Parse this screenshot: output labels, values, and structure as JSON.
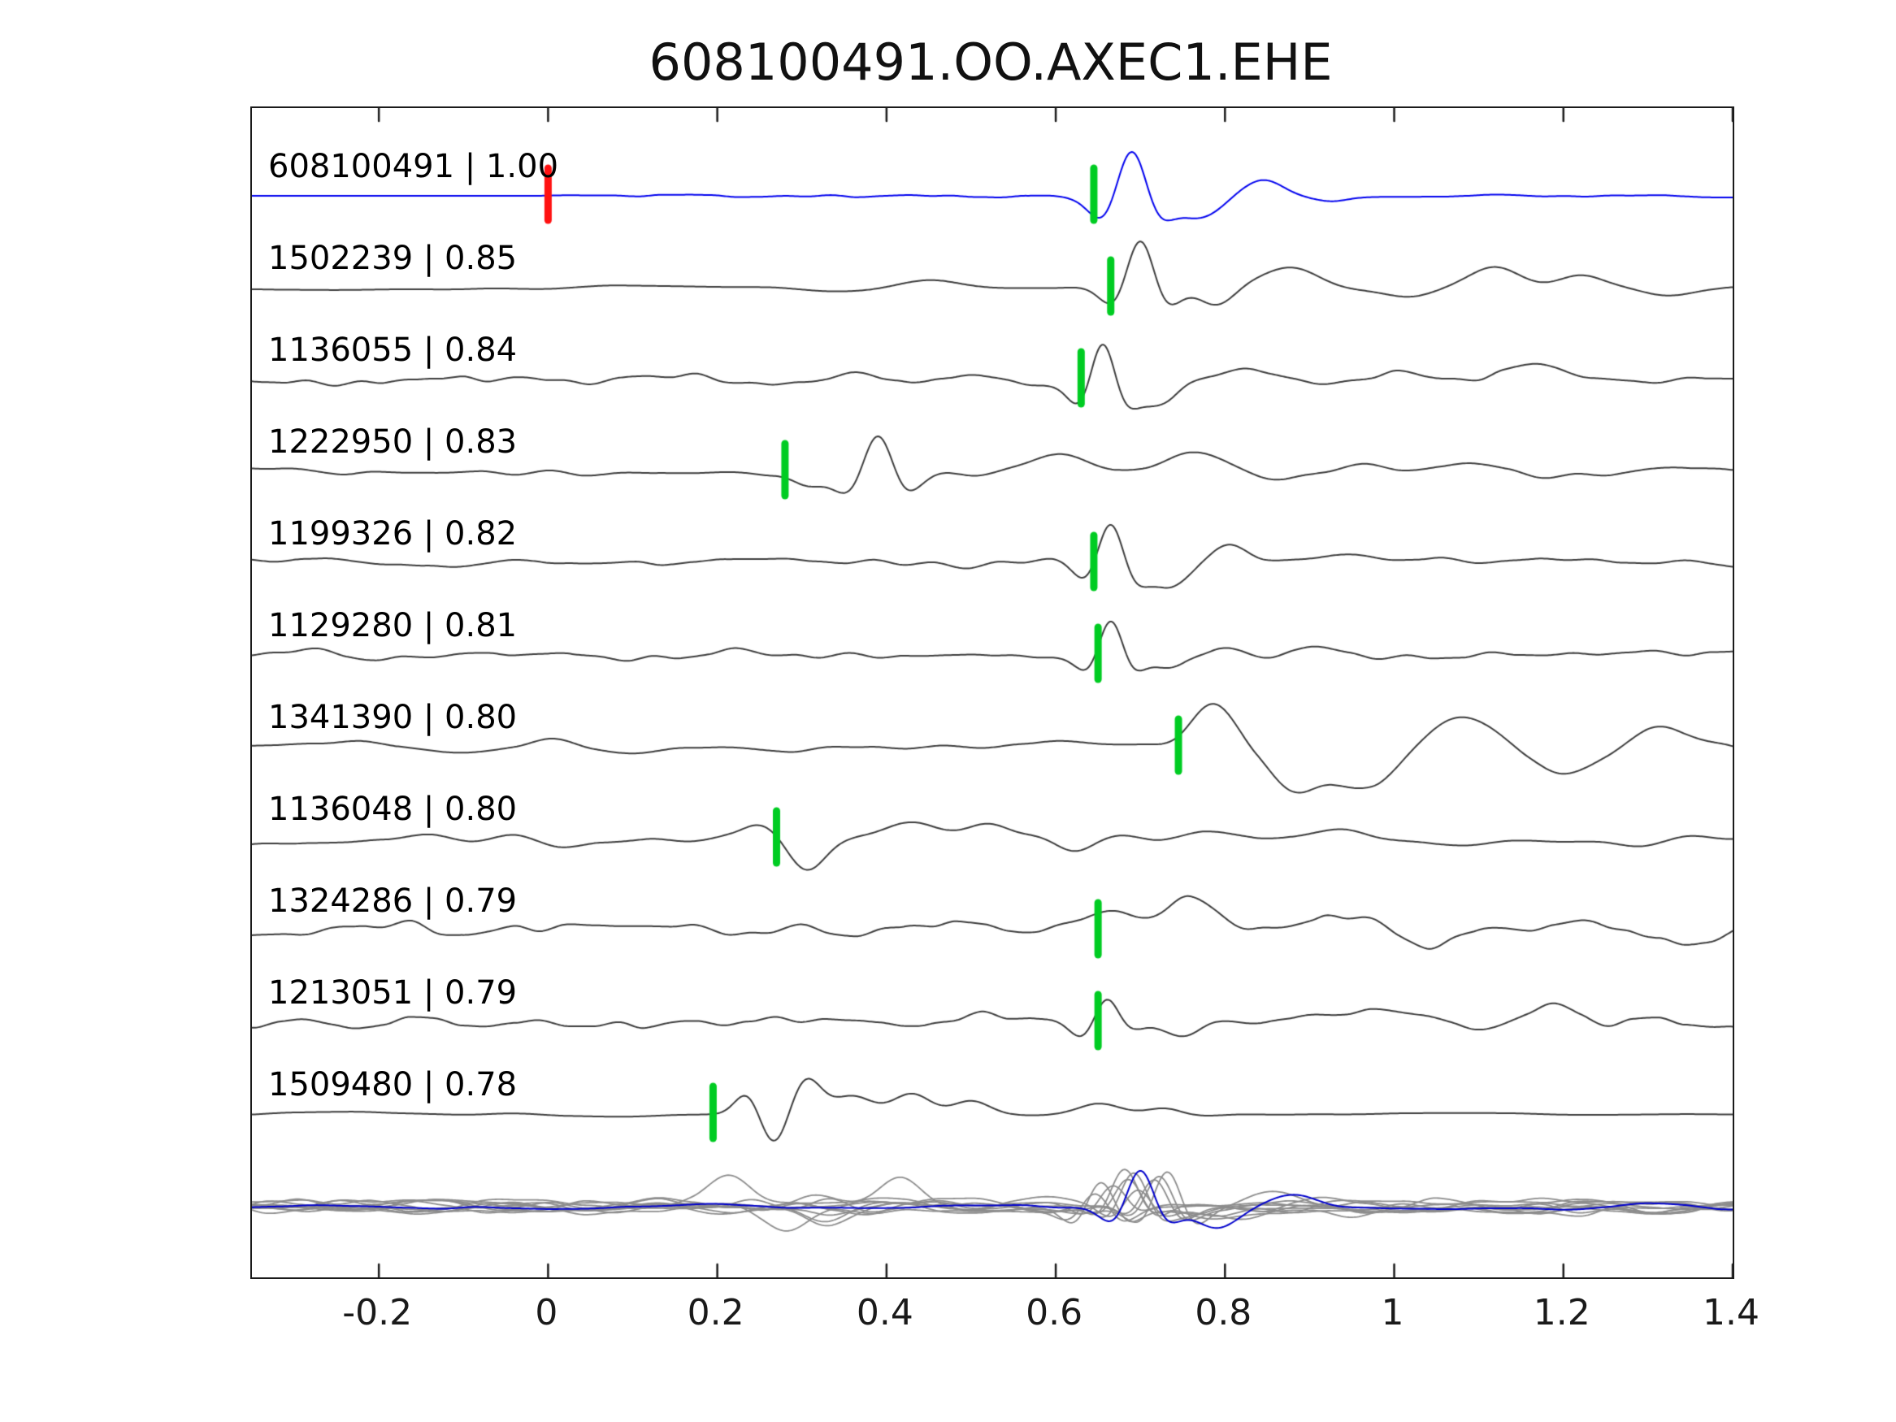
{
  "chart_data": {
    "type": "line",
    "title": "608100491.OO.AXEC1.EHE",
    "xlim": [
      -0.35,
      1.4
    ],
    "xticks": [
      -0.2,
      0,
      0.2,
      0.4,
      0.6,
      0.8,
      1,
      1.2,
      1.4
    ],
    "xtick_labels": [
      "-0.2",
      "0",
      "0.2",
      "0.4",
      "0.6",
      "0.8",
      "1",
      "1.2",
      "1.4"
    ],
    "colors": {
      "template_trace": "#0000ee",
      "member_trace": "#3c3c3c",
      "overlay_trace": "#8c8c8c",
      "overlay_template": "#0000cc",
      "pick_green": "#00cc22",
      "pick_red": "#ff1111",
      "axis": "#1a1a1a"
    },
    "traces": [
      {
        "id": "608100491",
        "corr": "1.00",
        "label": "608100491 | 1.00",
        "color": "#0000ee",
        "picks": [
          {
            "x": 0.0,
            "color": "#ff1111"
          },
          {
            "x": 0.645,
            "color": "#00cc22"
          }
        ],
        "synth": {
          "seed": 11,
          "noiseAmp": 5,
          "freq": 16,
          "env": [
            [
              -0.35,
              0.04
            ],
            [
              -0.01,
              0.04
            ],
            [
              0.04,
              0.9
            ],
            [
              0.55,
              0.9
            ],
            [
              0.95,
              0.5
            ],
            [
              1.4,
              0.45
            ]
          ],
          "wavelets": [
            [
              0.69,
              -55,
              0.032,
              "r"
            ],
            [
              0.77,
              28,
              0.035,
              "g"
            ],
            [
              0.845,
              -18,
              0.032,
              "g"
            ],
            [
              0.92,
              6,
              0.03,
              "g"
            ]
          ]
        }
      },
      {
        "id": "1502239",
        "corr": "0.85",
        "label": "1502239 | 0.85",
        "picks": [
          {
            "x": 0.665,
            "color": "#00cc22"
          }
        ],
        "synth": {
          "seed": 22,
          "noiseAmp": 9,
          "freq": 5.5,
          "env": [],
          "wavelets": [
            [
              0.45,
              -12,
              0.05,
              "g"
            ],
            [
              0.7,
              -52,
              0.03,
              "r"
            ],
            [
              0.79,
              26,
              0.03,
              "g"
            ],
            [
              0.88,
              -24,
              0.045,
              "g"
            ],
            [
              1.02,
              10,
              0.04,
              "g"
            ],
            [
              1.12,
              -22,
              0.04,
              "g"
            ],
            [
              1.22,
              -14,
              0.035,
              "g"
            ],
            [
              1.32,
              8,
              0.04,
              "g"
            ]
          ]
        }
      },
      {
        "id": "1136055",
        "corr": "0.84",
        "label": "1136055 | 0.84",
        "picks": [
          {
            "x": 0.63,
            "color": "#00cc22"
          }
        ],
        "synth": {
          "seed": 33,
          "noiseAmp": 12,
          "freq": 15,
          "env": [],
          "wavelets": [
            [
              0.655,
              -48,
              0.026,
              "r"
            ],
            [
              0.72,
              26,
              0.03,
              "g"
            ],
            [
              0.83,
              -18,
              0.05,
              "g"
            ],
            [
              1.0,
              -14,
              0.05,
              "g"
            ],
            [
              1.17,
              -12,
              0.045,
              "g"
            ]
          ]
        }
      },
      {
        "id": "1222950",
        "corr": "0.83",
        "label": "1222950 | 0.83",
        "picks": [
          {
            "x": 0.28,
            "color": "#00cc22"
          }
        ],
        "synth": {
          "seed": 44,
          "noiseAmp": 10,
          "freq": 11,
          "env": [],
          "wavelets": [
            [
              0.305,
              14,
              0.025,
              "g"
            ],
            [
              0.39,
              -45,
              0.032,
              "r"
            ],
            [
              0.6,
              -16,
              0.035,
              "g"
            ],
            [
              0.76,
              -18,
              0.04,
              "g"
            ],
            [
              0.87,
              12,
              0.04,
              "g"
            ],
            [
              1.1,
              -10,
              0.05,
              "g"
            ]
          ]
        }
      },
      {
        "id": "1199326",
        "corr": "0.82",
        "label": "1199326 | 0.82",
        "picks": [
          {
            "x": 0.645,
            "color": "#00cc22"
          }
        ],
        "synth": {
          "seed": 55,
          "noiseAmp": 9,
          "freq": 13,
          "env": [],
          "wavelets": [
            [
              0.665,
              -46,
              0.028,
              "r"
            ],
            [
              0.735,
              26,
              0.032,
              "g"
            ],
            [
              0.8,
              -20,
              0.035,
              "g"
            ],
            [
              0.95,
              -10,
              0.04,
              "g"
            ]
          ]
        }
      },
      {
        "id": "1129280",
        "corr": "0.81",
        "label": "1129280 | 0.81",
        "picks": [
          {
            "x": 0.65,
            "color": "#00cc22"
          }
        ],
        "synth": {
          "seed": 66,
          "noiseAmp": 10,
          "freq": 14,
          "env": [],
          "wavelets": [
            [
              0.665,
              -40,
              0.026,
              "r"
            ],
            [
              0.73,
              22,
              0.03,
              "g"
            ],
            [
              0.8,
              -16,
              0.035,
              "g"
            ],
            [
              0.9,
              -12,
              0.04,
              "g"
            ]
          ]
        }
      },
      {
        "id": "1341390",
        "corr": "0.80",
        "label": "1341390 | 0.80",
        "picks": [
          {
            "x": 0.745,
            "color": "#00cc22"
          }
        ],
        "synth": {
          "seed": 77,
          "noiseAmp": 11,
          "freq": 10,
          "env": [
            [
              -0.35,
              1
            ],
            [
              0.7,
              1
            ],
            [
              0.82,
              2.4
            ],
            [
              1.4,
              2.2
            ]
          ],
          "wavelets": [
            [
              0.78,
              -35,
              0.035,
              "g"
            ],
            [
              0.88,
              35,
              0.04,
              "g"
            ],
            [
              0.97,
              40,
              0.045,
              "g"
            ],
            [
              1.07,
              -28,
              0.04,
              "g"
            ],
            [
              1.2,
              32,
              0.05,
              "g"
            ],
            [
              1.33,
              -22,
              0.04,
              "g"
            ]
          ]
        }
      },
      {
        "id": "1136048",
        "corr": "0.80",
        "label": "1136048 | 0.80",
        "picks": [
          {
            "x": 0.27,
            "color": "#00cc22"
          }
        ],
        "synth": {
          "seed": 88,
          "noiseAmp": 14,
          "freq": 9,
          "env": [],
          "wavelets": [
            [
              0.25,
              -16,
              0.03,
              "g"
            ],
            [
              0.305,
              36,
              0.03,
              "g"
            ],
            [
              0.43,
              -22,
              0.04,
              "g"
            ],
            [
              0.52,
              -28,
              0.035,
              "g"
            ],
            [
              0.62,
              12,
              0.03,
              "g"
            ],
            [
              0.78,
              -14,
              0.04,
              "g"
            ]
          ]
        }
      },
      {
        "id": "1324286",
        "corr": "0.79",
        "label": "1324286 | 0.79",
        "picks": [
          {
            "x": 0.65,
            "color": "#00cc22"
          }
        ],
        "synth": {
          "seed": 99,
          "noiseAmp": 15,
          "freq": 15,
          "env": [
            [
              -0.35,
              1
            ],
            [
              0.6,
              1
            ],
            [
              0.72,
              1.5
            ],
            [
              1.4,
              1.4
            ]
          ],
          "wavelets": [
            [
              0.67,
              -20,
              0.03,
              "g"
            ],
            [
              0.75,
              -30,
              0.04,
              "g"
            ],
            [
              0.92,
              -22,
              0.04,
              "g"
            ],
            [
              1.05,
              25,
              0.04,
              "g"
            ]
          ]
        }
      },
      {
        "id": "1213051",
        "corr": "0.79",
        "label": "1213051 | 0.79",
        "picks": [
          {
            "x": 0.65,
            "color": "#00cc22"
          }
        ],
        "synth": {
          "seed": 110,
          "noiseAmp": 16,
          "freq": 15,
          "env": [],
          "wavelets": [
            [
              0.66,
              -28,
              0.028,
              "r"
            ],
            [
              0.75,
              26,
              0.035,
              "g"
            ],
            [
              0.97,
              -18,
              0.04,
              "g"
            ],
            [
              1.2,
              -16,
              0.045,
              "g"
            ]
          ]
        }
      },
      {
        "id": "1509480",
        "corr": "0.78",
        "label": "1509480 | 0.78",
        "picks": [
          {
            "x": 0.195,
            "color": "#00cc22"
          }
        ],
        "synth": {
          "seed": 121,
          "noiseAmp": 7,
          "freq": 7,
          "env": [
            [
              -0.35,
              1
            ],
            [
              0.75,
              1
            ],
            [
              0.9,
              0.4
            ],
            [
              1.4,
              0.35
            ]
          ],
          "wavelets": [
            [
              0.235,
              -26,
              0.02,
              "g"
            ],
            [
              0.268,
              40,
              0.022,
              "g"
            ],
            [
              0.305,
              -42,
              0.025,
              "g"
            ],
            [
              0.36,
              -18,
              0.03,
              "g"
            ],
            [
              0.43,
              -22,
              0.03,
              "g"
            ],
            [
              0.5,
              -16,
              0.03,
              "g"
            ],
            [
              0.65,
              -14,
              0.035,
              "g"
            ],
            [
              0.73,
              -10,
              0.03,
              "g"
            ]
          ]
        }
      }
    ],
    "overlay": {
      "count": 10,
      "noiseAmp": 13,
      "freq": 11,
      "color": "#8c8c8c",
      "blue": {
        "seed": 500,
        "noiseAmp": 5,
        "freq": 10,
        "env": [],
        "wavelets": [
          [
            0.7,
            -42,
            0.03,
            "r"
          ],
          [
            0.79,
            26,
            0.035,
            "g"
          ],
          [
            0.88,
            -14,
            0.04,
            "g"
          ]
        ]
      }
    }
  }
}
